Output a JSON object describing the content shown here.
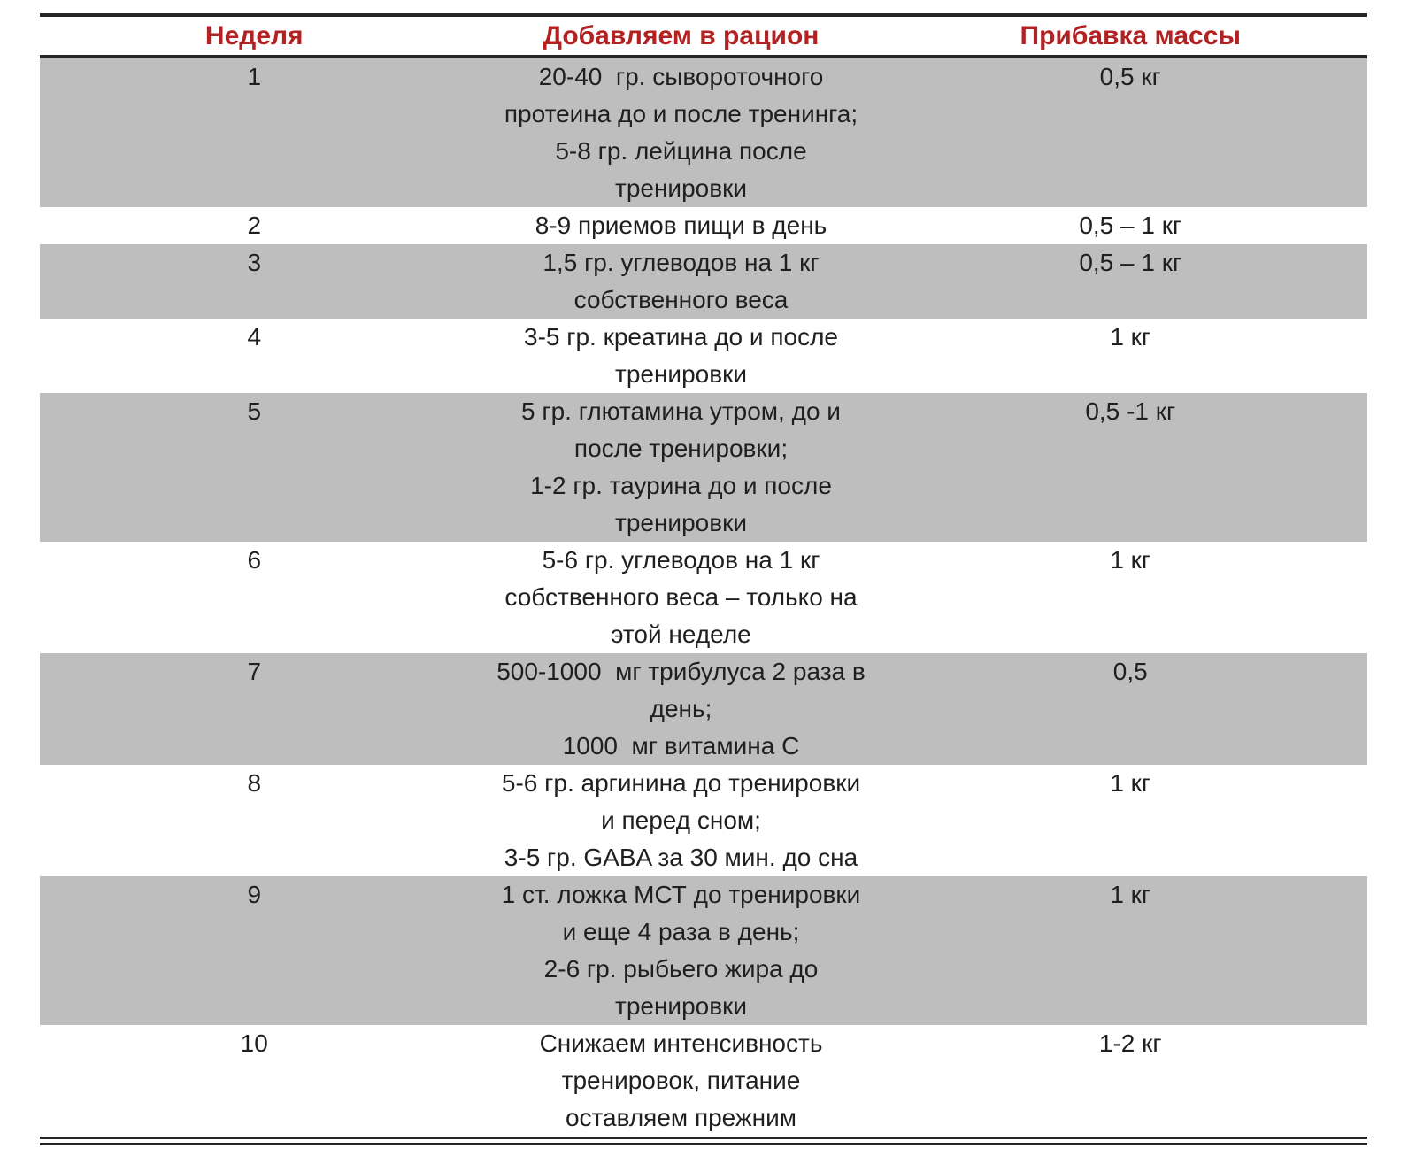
{
  "table": {
    "colors": {
      "header_text": "#b32222",
      "row_shade": "#bebebe",
      "border": "#262626",
      "text": "#1f1f1f"
    },
    "headers": {
      "week": "Неделя",
      "diet": "Добавляем в рацион",
      "gain": "Прибавка массы"
    },
    "rows": [
      {
        "week": "1",
        "diet": "20-40  гр. сывороточного\nпротеина до и после тренинга;\n5-8 гр. лейцина после\nтренировки",
        "gain": "0,5 кг"
      },
      {
        "week": "2",
        "diet": "8-9 приемов пищи в день",
        "gain": "0,5 – 1 кг"
      },
      {
        "week": "3",
        "diet": "1,5 гр. углеводов на 1 кг\nсобственного веса",
        "gain": "0,5 – 1 кг"
      },
      {
        "week": "4",
        "diet": "3-5 гр. креатина до и после\nтренировки",
        "gain": "1 кг"
      },
      {
        "week": "5",
        "diet": "5 гр. глютамина утром, до и\nпосле тренировки;\n1-2 гр. таурина до и после\nтренировки",
        "gain": "0,5 -1 кг"
      },
      {
        "week": "6",
        "diet": "5-6 гр. углеводов на 1 кг\nсобственного веса – только на\nэтой неделе",
        "gain": "1 кг"
      },
      {
        "week": "7",
        "diet": "500-1000  мг трибулуса 2 раза в\nдень;\n1000  мг витамина С",
        "gain": "0,5"
      },
      {
        "week": "8",
        "diet": "5-6 гр. аргинина до тренировки\nи перед сном;\n3-5 гр. GABA за 30 мин. до сна",
        "gain": "1 кг"
      },
      {
        "week": "9",
        "diet": "1 ст. ложка МСТ до тренировки\nи еще 4 раза в день;\n2-6 гр. рыбьего жира до\nтренировки",
        "gain": "1 кг"
      },
      {
        "week": "10",
        "diet": "Снижаем интенсивность\nтренировок, питание\nоставляем прежним",
        "gain": "1-2 кг"
      }
    ]
  }
}
